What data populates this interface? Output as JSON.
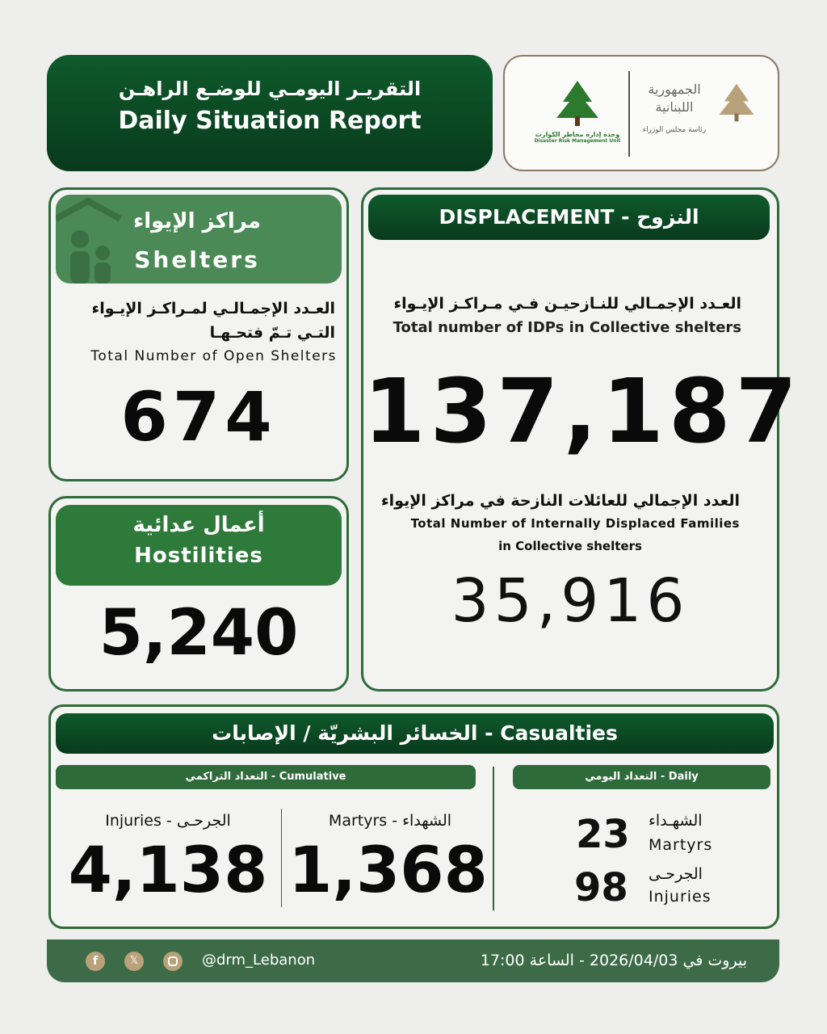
{
  "header": {
    "title_ar": "التقريـر اليومـي للوضـع الراهـن",
    "title_en": "Daily Situation Report"
  },
  "logos": {
    "drm_ar": "وحدة إدارة مخاطر الكوارث",
    "drm_en": "Disaster Risk Management Unit",
    "gov_ar": "الجمهورية اللبنانية",
    "gov_sub": "رئاسة مجلس الوزراء"
  },
  "shelters": {
    "title_ar": "مراكز الإيواء",
    "title_en": "Shelters",
    "label_ar1": "العـدد الإجمـالـي لمـراكـز الإيـواء",
    "label_ar2": "التـي تـمّ فتحـهـا",
    "label_en": "Total Number of Open Shelters",
    "value": "674"
  },
  "hostilities": {
    "title_ar": "أعمال عدائية",
    "title_en": "Hostilities",
    "value": "5,240"
  },
  "displacement": {
    "title": "DISPLACEMENT - النزوح",
    "idps_ar": "العـدد الإجمـالي للنـازحيـن فـي مـراكـز الإيـواء",
    "idps_en": "Total number of IDPs in Collective shelters",
    "idps_value": "137,187",
    "families_ar": "العدد الإجمالي للعائلات النازحة في مراكز الإيواء",
    "families_en1": "Total Number of Internally Displaced Families",
    "families_en2": "in Collective shelters",
    "families_value": "35,916"
  },
  "casualties": {
    "title": "الخسائر البشريّة / الإصابات - Casualties",
    "cumulative_label": "التعداد التراكمي - Cumulative",
    "daily_label": "التعداد اليومي - Daily",
    "cum_injuries_label": "Injuries - الجرحـى",
    "cum_injuries": "4,138",
    "cum_martyrs_label": "Martyrs - الشهداء",
    "cum_martyrs": "1,368",
    "daily_martyrs": "23",
    "daily_martyrs_ar": "الشهـداء",
    "daily_martyrs_en": "Martyrs",
    "daily_injuries": "98",
    "daily_injuries_ar": "الجرحـى",
    "daily_injuries_en": "Injuries"
  },
  "footer": {
    "handle": "@drm_Lebanon",
    "datetime": "بيروت في 2026/04/03 - الساعة 17:00",
    "icons": [
      "facebook-icon",
      "x-icon",
      "instagram-icon"
    ]
  },
  "colors": {
    "dark_green": "#0b4a24",
    "mid_green": "#3f7f4a",
    "footer_green": "#3d6b48",
    "gold": "#b9a27a"
  }
}
